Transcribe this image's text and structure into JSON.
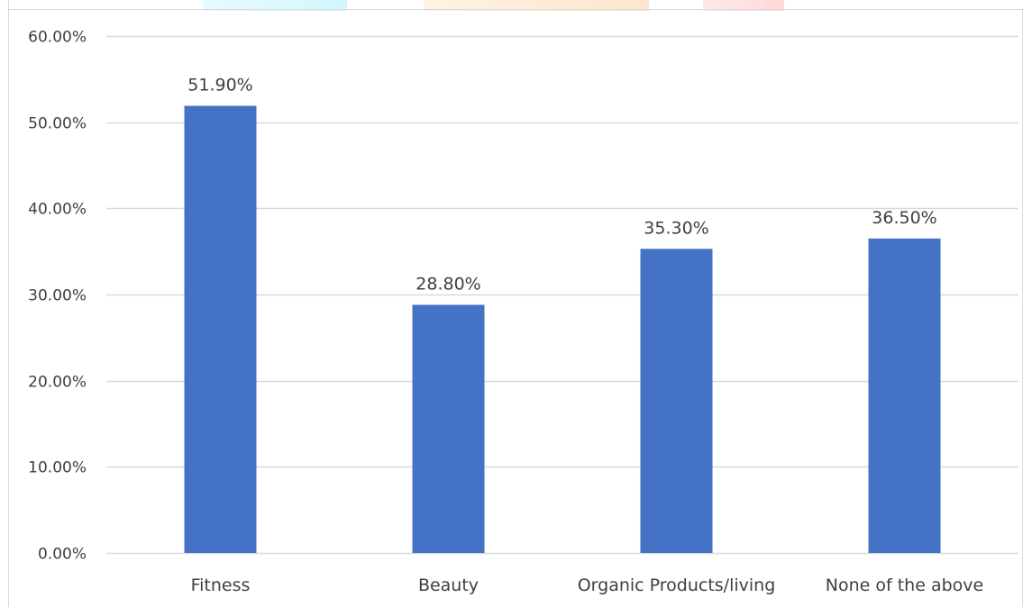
{
  "chart_data": {
    "type": "bar",
    "title": "",
    "xlabel": "",
    "ylabel": "",
    "categories": [
      "Fitness",
      "Beauty",
      "Organic Products/living",
      "None of the above"
    ],
    "values": [
      51.9,
      28.8,
      35.3,
      36.5
    ],
    "data_labels": [
      "51.90%",
      "28.80%",
      "35.30%",
      "36.50%"
    ],
    "ylim": [
      0,
      60
    ],
    "yticks": [
      0,
      10,
      20,
      30,
      40,
      50,
      60
    ],
    "ytick_labels": [
      "0.00%",
      "10.00%",
      "20.00%",
      "30.00%",
      "40.00%",
      "50.00%",
      "60.00%"
    ],
    "grid": true,
    "legend": "none",
    "colors": {
      "bar": "#4472C4",
      "grid": "#d9d9d9",
      "text": "#404040",
      "frame": "#d9d9d9"
    }
  }
}
